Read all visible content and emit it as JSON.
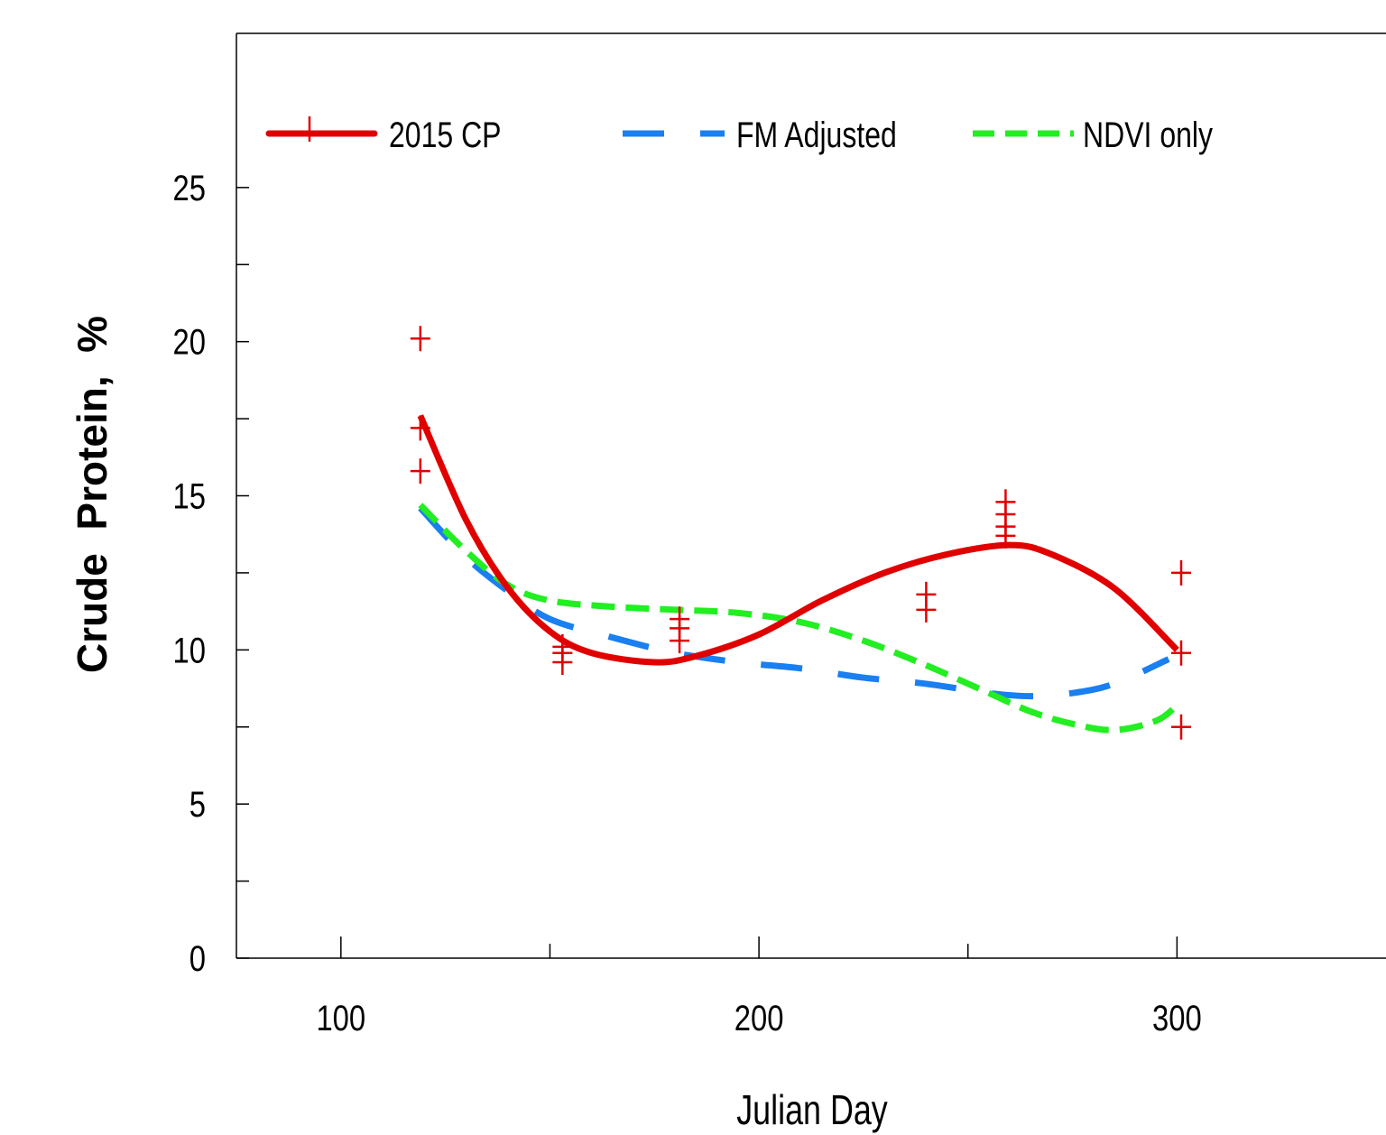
{
  "chart_data": {
    "type": "scatter",
    "xlabel": "Julian Day",
    "ylabel": "Crude  Protein,  %",
    "xlim": [
      75,
      350
    ],
    "ylim": [
      0,
      30
    ],
    "xticks_major": [
      100,
      200,
      300
    ],
    "xticks_minor": [
      150,
      250
    ],
    "yticks_major": [
      0,
      5,
      10,
      15,
      20,
      25
    ],
    "yticks_minor": [
      2.5,
      7.5,
      12.5,
      17.5,
      22.5
    ],
    "grid": false,
    "legend_position": "top",
    "observations": {
      "name": "2015 CP",
      "color": "#e00000",
      "marker": "plus",
      "points": [
        [
          119,
          20.1
        ],
        [
          119,
          17.2
        ],
        [
          119,
          15.8
        ],
        [
          153,
          10.1
        ],
        [
          153,
          9.9
        ],
        [
          153,
          9.6
        ],
        [
          181,
          11.0
        ],
        [
          181,
          10.7
        ],
        [
          181,
          10.3
        ],
        [
          240,
          11.8
        ],
        [
          240,
          11.3
        ],
        [
          259,
          14.8
        ],
        [
          259,
          14.4
        ],
        [
          259,
          14.0
        ],
        [
          259,
          13.7
        ],
        [
          301,
          12.5
        ],
        [
          301,
          9.9
        ],
        [
          301,
          7.5
        ]
      ]
    },
    "series": [
      {
        "name": "2015 CP",
        "color": "#e00000",
        "style": "solid",
        "x": [
          119,
          130,
          140,
          150,
          160,
          175,
          185,
          200,
          215,
          230,
          245,
          260,
          270,
          285,
          300
        ],
        "y": [
          17.6,
          14.2,
          12.0,
          10.6,
          9.9,
          9.6,
          9.8,
          10.5,
          11.6,
          12.5,
          13.1,
          13.4,
          13.1,
          12.0,
          10.0
        ]
      },
      {
        "name": "FM Adjusted",
        "color": "#1a7ff0",
        "style": "long-dash",
        "x": [
          119,
          130,
          140,
          150,
          165,
          180,
          195,
          210,
          225,
          240,
          255,
          265,
          275,
          285,
          298
        ],
        "y": [
          14.6,
          13.0,
          11.9,
          11.0,
          10.4,
          9.9,
          9.6,
          9.4,
          9.1,
          8.9,
          8.6,
          8.5,
          8.6,
          8.9,
          9.7
        ]
      },
      {
        "name": "NDVI only",
        "color": "#22ee22",
        "style": "dash",
        "x": [
          119,
          130,
          140,
          150,
          165,
          180,
          195,
          210,
          225,
          240,
          255,
          265,
          275,
          285,
          295,
          300
        ],
        "y": [
          14.7,
          13.2,
          12.1,
          11.6,
          11.4,
          11.3,
          11.2,
          10.9,
          10.3,
          9.5,
          8.6,
          8.0,
          7.6,
          7.4,
          7.7,
          8.2
        ]
      }
    ]
  }
}
